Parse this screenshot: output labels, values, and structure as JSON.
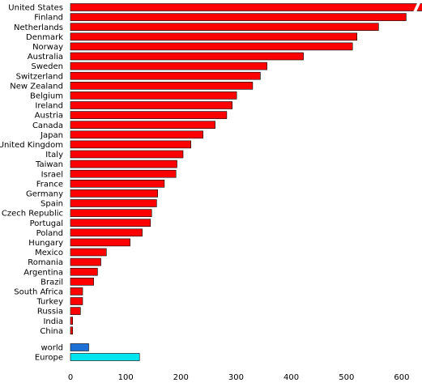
{
  "chart_data": {
    "type": "bar",
    "orientation": "horizontal",
    "title": "",
    "xlabel": "",
    "ylabel": "",
    "xlim": [
      0,
      640
    ],
    "xticks": [
      0,
      100,
      200,
      300,
      400,
      500,
      600
    ],
    "grid": false,
    "legend": "none",
    "categories": [
      "United States",
      "Finland",
      "Netherlands",
      "Denmark",
      "Norway",
      "Australia",
      "Sweden",
      "Switzerland",
      "New Zealand",
      "Belgium",
      "Ireland",
      "Austria",
      "Canada",
      "Japan",
      "United Kingdom",
      "Italy",
      "Taiwan",
      "Israel",
      "France",
      "Germany",
      "Spain",
      "Czech Republic",
      "Portugal",
      "Poland",
      "Hungary",
      "Mexico",
      "Romania",
      "Argentina",
      "Brazil",
      "South Africa",
      "Turkey",
      "Russia",
      "India",
      "China"
    ],
    "values": [
      640,
      608,
      558,
      519,
      511,
      422,
      356,
      344,
      330,
      301,
      293,
      283,
      262,
      240,
      218,
      204,
      193,
      191,
      170,
      158,
      156,
      147,
      145,
      130,
      108,
      65,
      55,
      49,
      42,
      22,
      22,
      18,
      4,
      4
    ],
    "truncated": [
      "United States"
    ],
    "aggregates": {
      "categories": [
        "world",
        "Europe"
      ],
      "values": [
        33,
        125
      ]
    },
    "colors": {
      "country_bar": "#ff0000",
      "world_bar": "#1e6fd6",
      "europe_bar": "#00e5f0",
      "bar_outline": "#000000"
    }
  }
}
